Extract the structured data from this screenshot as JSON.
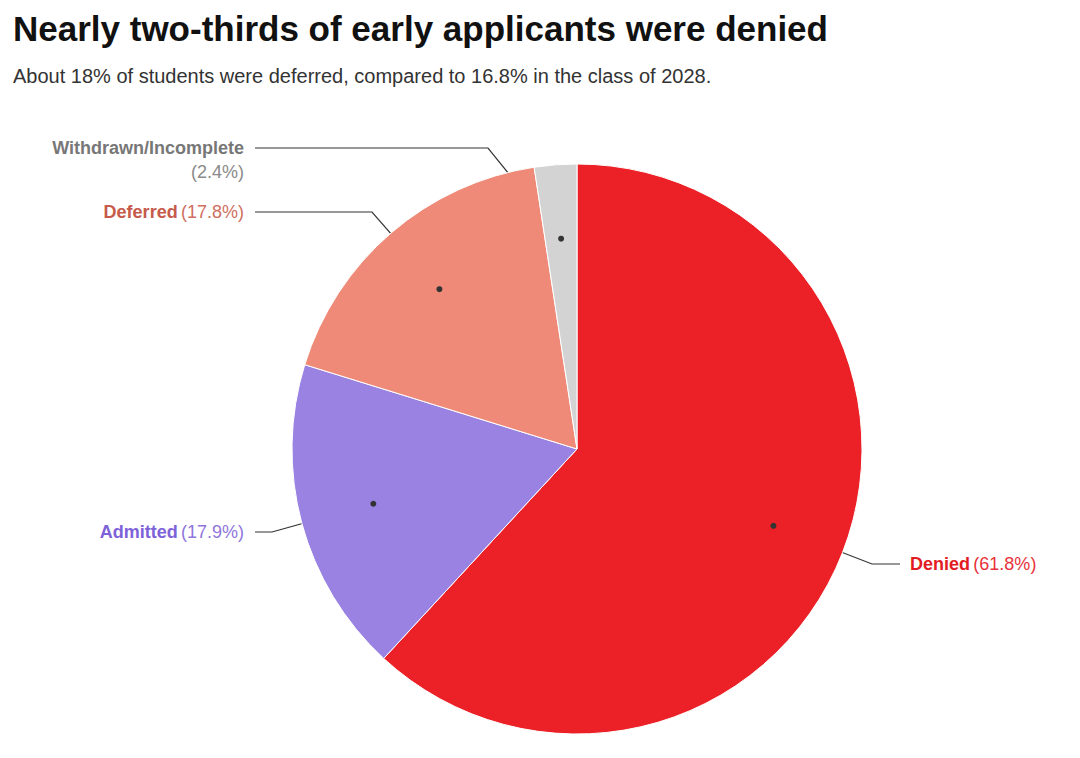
{
  "chart_data": {
    "type": "pie",
    "title": "Nearly two-thirds of early applicants were denied",
    "subtitle": "About 18% of students were deferred, compared to 16.8% in the class of 2028.",
    "categories": [
      "Denied",
      "Admitted",
      "Deferred",
      "Withdrawn/Incomplete"
    ],
    "values": [
      61.8,
      17.9,
      17.8,
      2.4
    ],
    "value_labels": [
      "(61.8%)",
      "(17.9%)",
      "(17.8%)",
      "(2.4%)"
    ],
    "colors": [
      "#ec2027",
      "#9a82e3",
      "#ef8a78",
      "#d3d3d3"
    ],
    "data_labels": true
  }
}
